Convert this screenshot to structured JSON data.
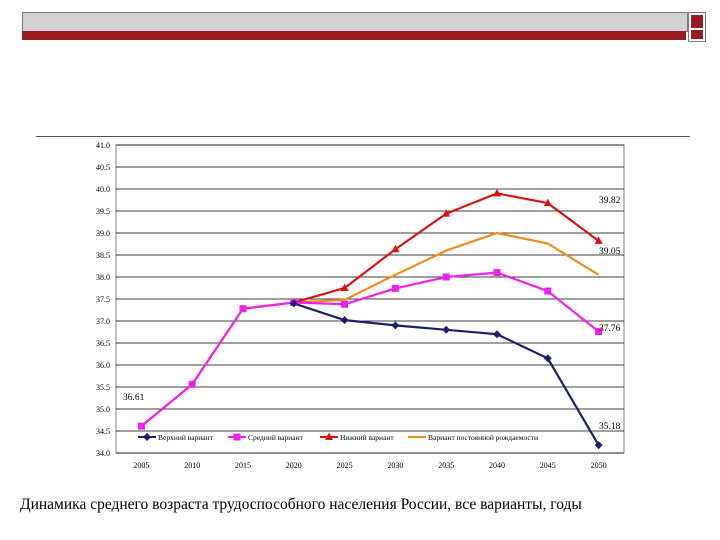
{
  "caption": "Динамика среднего возраста трудоспособного населения России, все варианты, годы",
  "chart_data": {
    "type": "line",
    "title": "",
    "xlabel": "",
    "ylabel": "",
    "categories": [
      "2005",
      "2010",
      "2015",
      "2020",
      "2025",
      "2030",
      "2035",
      "2040",
      "2045",
      "2050"
    ],
    "ylim": [
      34.0,
      41.0
    ],
    "ytick_labels": [
      "34.0",
      "34.5",
      "35.0",
      "35.5",
      "36.0",
      "36.5",
      "37.0",
      "37.5",
      "38.0",
      "38.5",
      "39.0",
      "39.5",
      "40.0",
      "40.5",
      "41.0"
    ],
    "grid": true,
    "legend_position": "bottom-left",
    "series": [
      {
        "name": "Верхний вариант",
        "color": "#1a1f6e",
        "marker": "diamond",
        "values": [
          null,
          null,
          null,
          37.4,
          37.02,
          36.9,
          36.8,
          36.7,
          36.15,
          34.18
        ]
      },
      {
        "name": "Средний вариант",
        "color": "#ee22ee",
        "marker": "square",
        "values": [
          34.61,
          35.56,
          37.28,
          37.42,
          37.38,
          37.74,
          38.0,
          38.1,
          37.68,
          36.76
        ]
      },
      {
        "name": "Нижний вариант",
        "color": "#dd1111",
        "marker": "triangle",
        "values": [
          null,
          null,
          null,
          37.42,
          37.75,
          38.63,
          39.44,
          39.9,
          39.68,
          38.82
        ]
      },
      {
        "name": "Вариант постоянной рождаемости",
        "color": "#f28a1c",
        "marker": "none",
        "values": [
          34.61,
          35.56,
          37.28,
          37.42,
          37.48,
          38.05,
          38.6,
          39.0,
          38.76,
          38.05
        ]
      }
    ],
    "annotations": [
      "39.82",
      "39.05",
      "37.76",
      "36.61",
      "35.18"
    ]
  }
}
